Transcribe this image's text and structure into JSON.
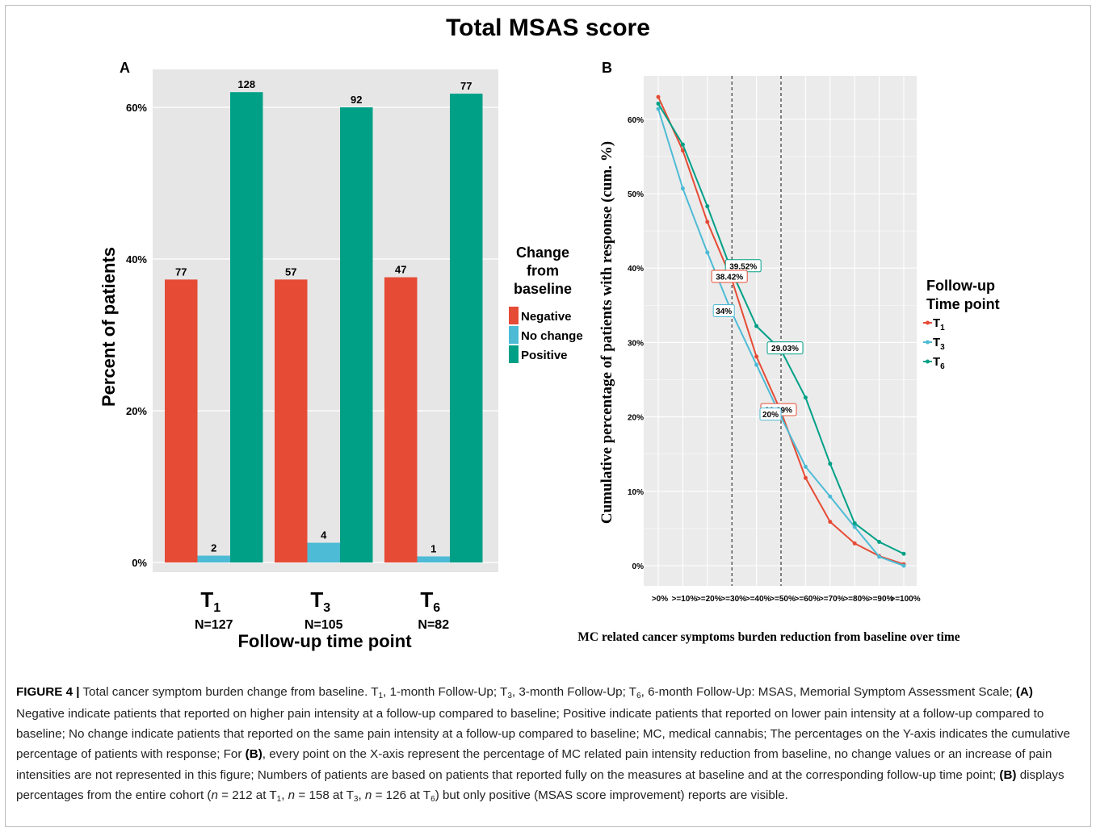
{
  "figure_title": "Total MSAS score",
  "caption": {
    "figure_label": "FIGURE 4 |",
    "text": "Total cancer symptom burden change from baseline. T1, 1-month Follow-Up; T3, 3-month Follow-Up; T6, 6-month Follow-Up: MSAS, Memorial Symptom Assessment Scale; (A) Negative indicate patients that reported on higher pain intensity at a follow-up compared to baseline; Positive indicate patients that reported on lower pain intensity at a follow-up compared to baseline; No change indicate patients that reported on the same pain intensity at a follow-up compared to baseline; MC, medical cannabis; The percentages on the Y-axis indicates the cumulative percentage of patients with response; For (B), every point on the X-axis represent the percentage of MC related pain intensity reduction from baseline, no change values or an increase of pain intensities are not represented in this figure; Numbers of patients are based on patients that reported fully on the measures at baseline and at the corresponding follow-up time point; (B) displays percentages from the entire cohort (n = 212 at T1, n = 158 at T3, n = 126 at T6) but only positive (MSAS score improvement) reports are visible."
  },
  "chart_data": [
    {
      "panel": "A",
      "type": "bar",
      "ylabel": "Percent of patients",
      "xlabel": "Follow-up time point",
      "ylim": [
        0,
        63
      ],
      "yticks": [
        "0%",
        "20%",
        "40%",
        "60%"
      ],
      "categories": [
        "T1",
        "T3",
        "T6"
      ],
      "category_sub": [
        "1",
        "3",
        "6"
      ],
      "category_n": [
        "N=127",
        "N=105",
        "N=82"
      ],
      "legend_title": "Change from baseline",
      "legend_position": "right",
      "series": [
        {
          "name": "Negative",
          "color": "#e64b35",
          "values": [
            37.3,
            37.3,
            37.6
          ],
          "labels": [
            "77",
            "57",
            "47"
          ]
        },
        {
          "name": "No change",
          "color": "#4dbbd5",
          "values": [
            0.9,
            2.6,
            0.8
          ],
          "labels": [
            "2",
            "4",
            "1"
          ]
        },
        {
          "name": "Positive",
          "color": "#00a087",
          "values": [
            62.0,
            60.0,
            61.8
          ],
          "labels": [
            "128",
            "92",
            "77"
          ]
        }
      ]
    },
    {
      "panel": "B",
      "type": "line",
      "ylabel": "Cumulative percentage of patients with response (cum. %)",
      "xlabel": "MC related cancer symptoms burden reduction from baseline over time",
      "categories": [
        ">0%",
        ">=10%",
        ">=20%",
        ">=30%",
        ">=40%",
        ">=50%",
        ">=60%",
        ">=70%",
        ">=80%",
        ">=90%",
        ">=100%"
      ],
      "ylim": [
        -3,
        66
      ],
      "yticks": [
        "0%",
        "10%",
        "20%",
        "30%",
        "40%",
        "50%",
        "60%"
      ],
      "legend_title": "Follow-up Time point",
      "legend_position": "right",
      "vlines": [
        ">=30%",
        ">=50%"
      ],
      "series": [
        {
          "name": "T1",
          "sub": "1",
          "color": "#e64b35",
          "values": [
            63.0,
            55.8,
            46.2,
            38.4,
            28.1,
            20.7,
            11.8,
            5.9,
            3.0,
            1.3,
            0.2
          ]
        },
        {
          "name": "T3",
          "sub": "3",
          "color": "#4dbbd5",
          "values": [
            61.4,
            50.7,
            42.1,
            34.0,
            27.0,
            20.0,
            13.3,
            9.3,
            5.2,
            1.2,
            0.0
          ]
        },
        {
          "name": "T6",
          "sub": "6",
          "color": "#00a087",
          "values": [
            62.1,
            56.6,
            48.3,
            39.5,
            32.2,
            29.0,
            22.6,
            13.7,
            5.7,
            3.2,
            1.6
          ]
        }
      ],
      "annotations": [
        {
          "label": "39.52%",
          "color": "#00a087",
          "series": "T6",
          "index": 3
        },
        {
          "label": "38.42%",
          "color": "#e64b35",
          "series": "T1",
          "index": 3
        },
        {
          "label": "34%",
          "color": "#4dbbd5",
          "series": "T3",
          "index": 3
        },
        {
          "label": "29.03%",
          "color": "#00a087",
          "series": "T6",
          "index": 5
        },
        {
          "label": "20.69%",
          "color": "#e64b35",
          "series": "T1",
          "index": 5
        },
        {
          "label": "20%",
          "color": "#4dbbd5",
          "series": "T3",
          "index": 5
        }
      ]
    }
  ]
}
